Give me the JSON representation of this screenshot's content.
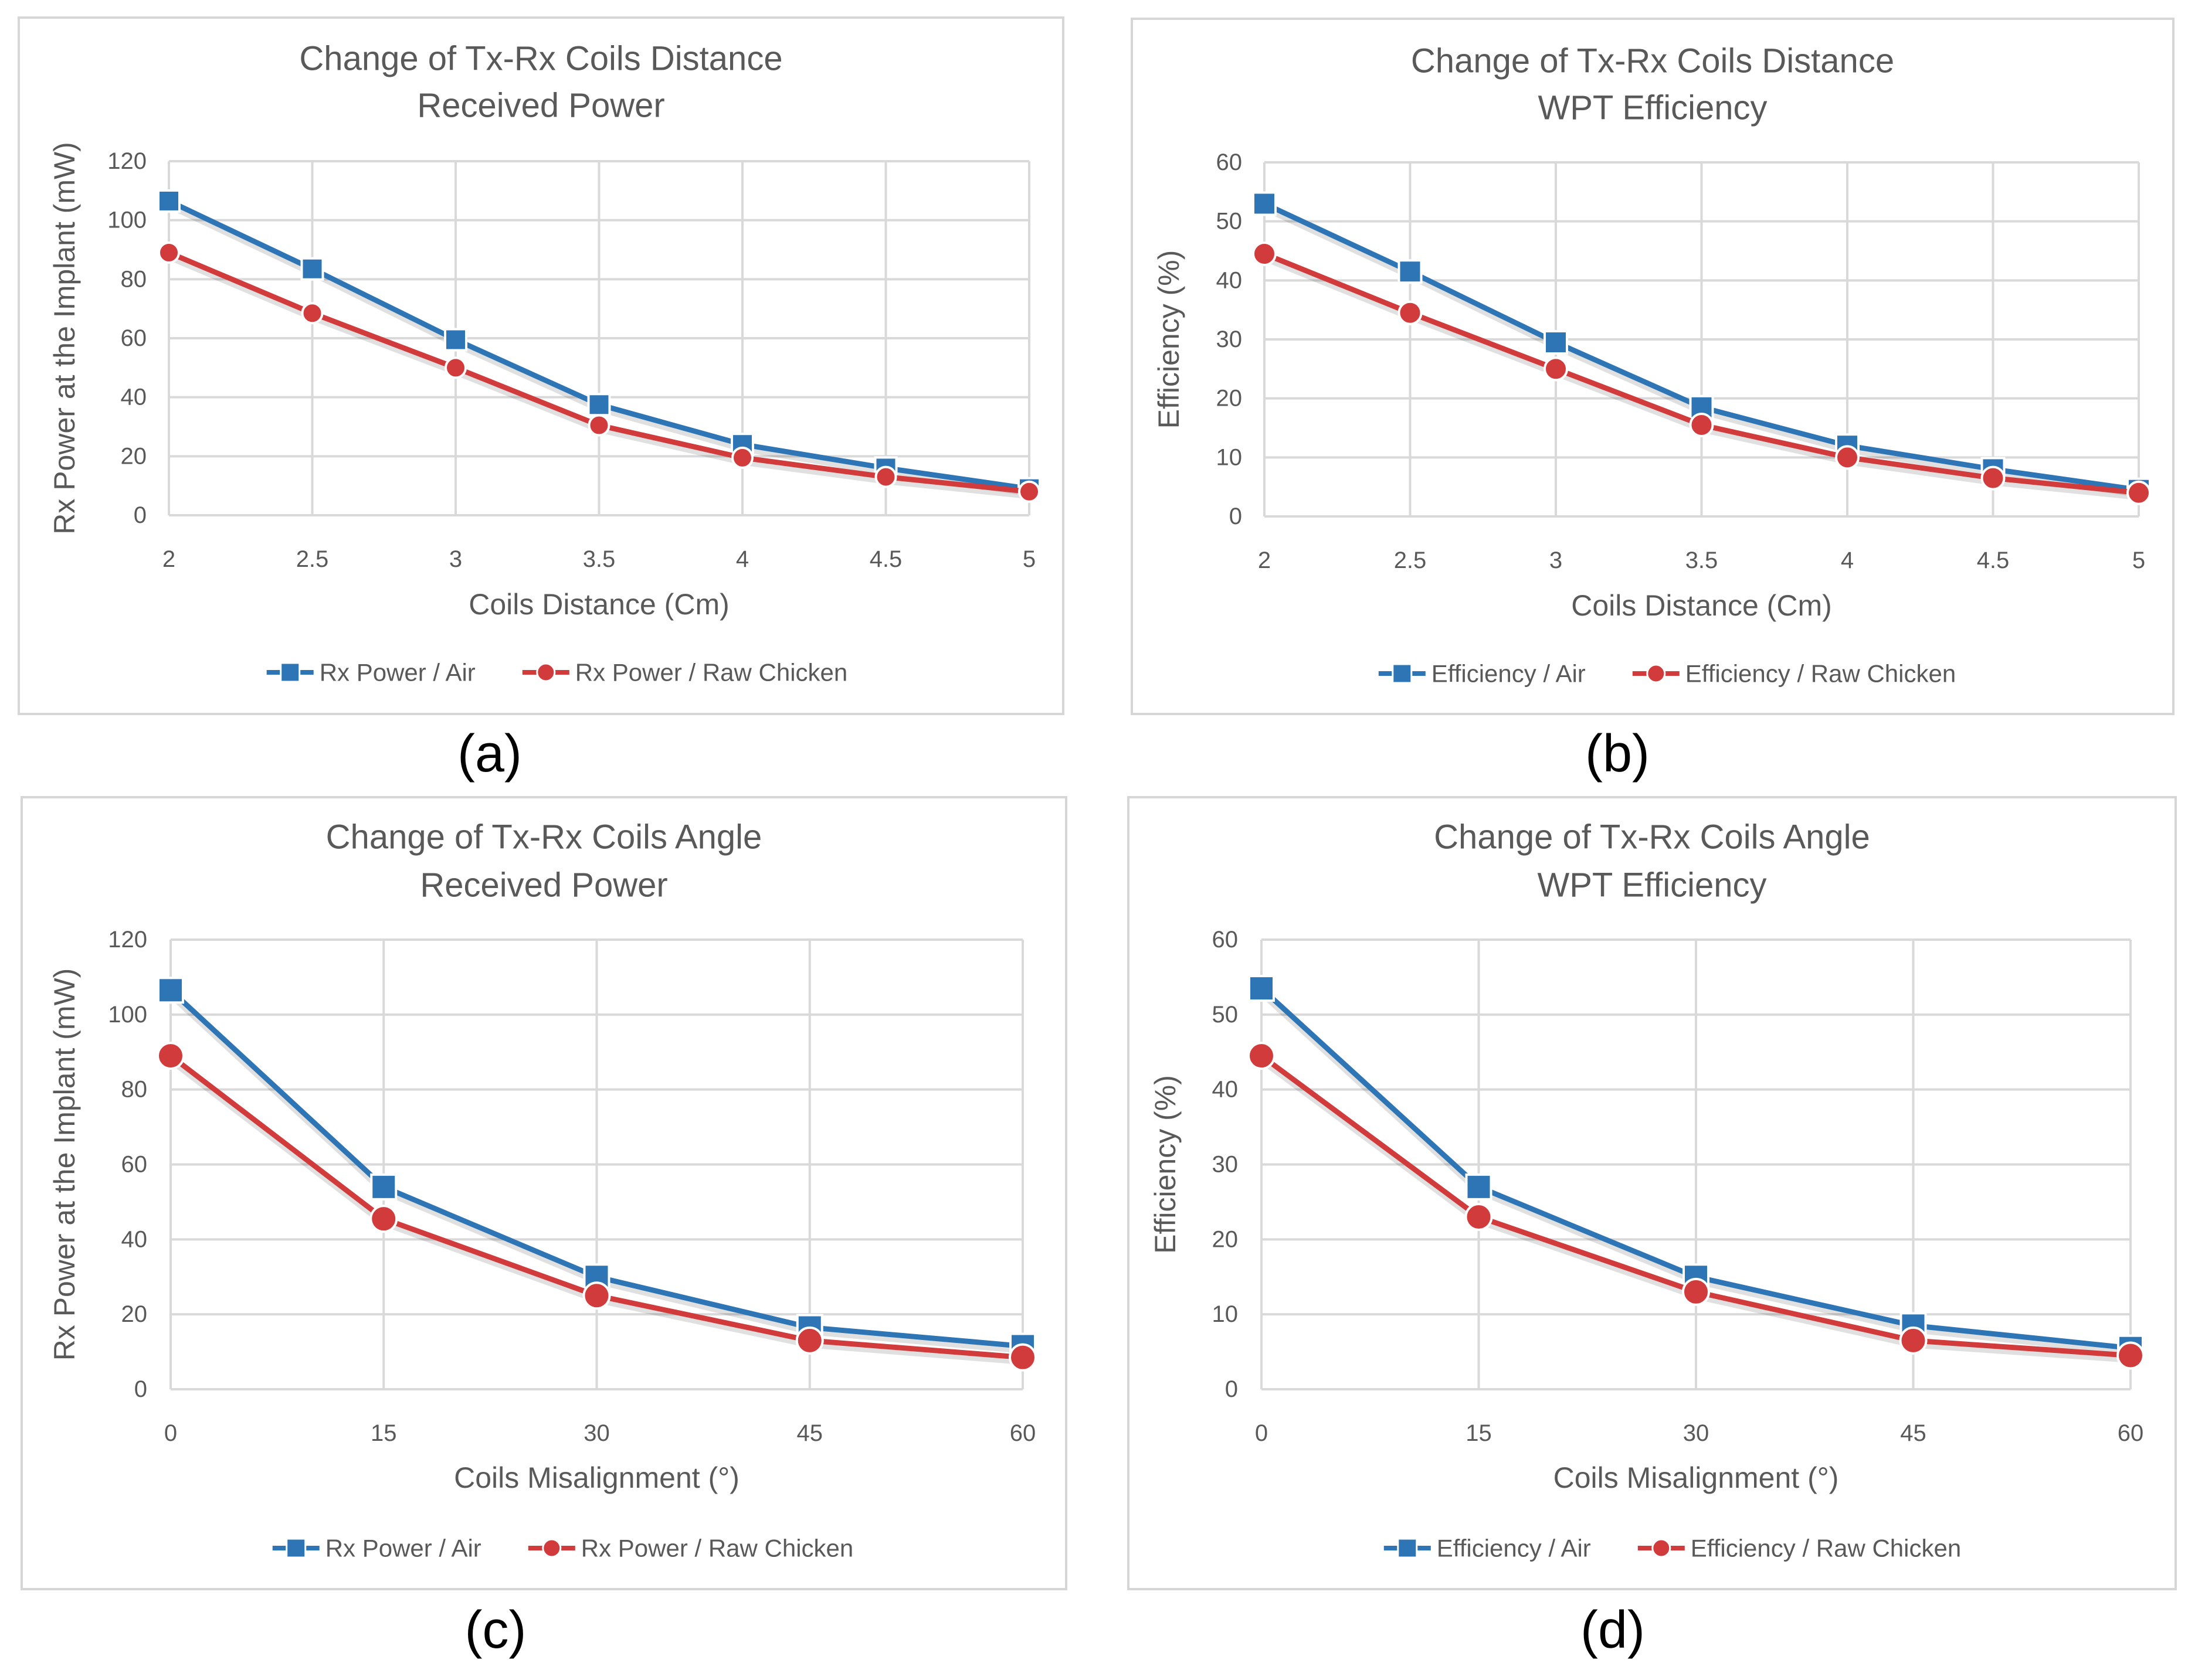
{
  "colors": {
    "air": "#2e75b6",
    "chicken": "#d13b3b"
  },
  "panels": [
    {
      "id": "a",
      "caption": "(a)",
      "chart_data": {
        "type": "line",
        "title": [
          "Change of Tx-Rx Coils Distance",
          "Received Power"
        ],
        "xlabel": "Coils Distance (Cm)",
        "ylabel": "Rx Power at the Implant (mW)",
        "categories": [
          "2",
          "2.5",
          "3",
          "3.5",
          "4",
          "4.5",
          "5"
        ],
        "y_ticks": [
          "0",
          "20",
          "40",
          "60",
          "80",
          "100",
          "120"
        ],
        "ylim": [
          0,
          120
        ],
        "series": [
          {
            "name": "Rx Power / Air",
            "marker": "square",
            "values": [
              106.5,
              83.5,
              59.5,
              37.5,
              24,
              16,
              9
            ]
          },
          {
            "name": "Rx Power / Raw Chicken",
            "marker": "circle",
            "values": [
              89,
              68.5,
              50,
              30.5,
              19.5,
              13,
              8
            ]
          }
        ],
        "legend": "bottom"
      }
    },
    {
      "id": "b",
      "caption": "(b)",
      "chart_data": {
        "type": "line",
        "title": [
          "Change of Tx-Rx Coils Distance",
          "WPT Efficiency"
        ],
        "xlabel": "Coils Distance (Cm)",
        "ylabel": "Efficiency (%)",
        "categories": [
          "2",
          "2.5",
          "3",
          "3.5",
          "4",
          "4.5",
          "5"
        ],
        "y_ticks": [
          "0",
          "10",
          "20",
          "30",
          "40",
          "50",
          "60"
        ],
        "ylim": [
          0,
          60
        ],
        "series": [
          {
            "name": "Efficiency / Air",
            "marker": "square",
            "values": [
              53,
              41.5,
              29.5,
              18.5,
              12,
              8,
              4.5
            ]
          },
          {
            "name": "Efficiency / Raw Chicken",
            "marker": "circle",
            "values": [
              44.5,
              34.5,
              25,
              15.5,
              10,
              6.5,
              4
            ]
          }
        ],
        "legend": "bottom"
      }
    },
    {
      "id": "c",
      "caption": "(c)",
      "chart_data": {
        "type": "line",
        "title": [
          "Change of Tx-Rx Coils Angle",
          "Received Power"
        ],
        "xlabel": "Coils Misalignment (°)",
        "ylabel": "Rx Power at the Implant (mW)",
        "categories": [
          "0",
          "15",
          "30",
          "45",
          "60"
        ],
        "y_ticks": [
          "0",
          "20",
          "40",
          "60",
          "80",
          "100",
          "120"
        ],
        "ylim": [
          0,
          120
        ],
        "series": [
          {
            "name": "Rx Power / Air",
            "marker": "square",
            "values": [
              106.5,
              54,
              30,
              16.5,
              11.5
            ]
          },
          {
            "name": "Rx Power / Raw Chicken",
            "marker": "circle",
            "values": [
              89,
              45.5,
              25,
              13,
              8.5
            ]
          }
        ],
        "legend": "bottom"
      }
    },
    {
      "id": "d",
      "caption": "(d)",
      "chart_data": {
        "type": "line",
        "title": [
          "Change of Tx-Rx Coils Angle",
          "WPT Efficiency"
        ],
        "xlabel": "Coils Misalignment (°)",
        "ylabel": "Efficiency (%)",
        "categories": [
          "0",
          "15",
          "30",
          "45",
          "60"
        ],
        "y_ticks": [
          "0",
          "10",
          "20",
          "30",
          "40",
          "50",
          "60"
        ],
        "ylim": [
          0,
          60
        ],
        "series": [
          {
            "name": "Efficiency / Air",
            "marker": "square",
            "values": [
              53.5,
              27,
              15,
              8.5,
              5.5
            ]
          },
          {
            "name": "Efficiency / Raw Chicken",
            "marker": "circle",
            "values": [
              44.5,
              23,
              13,
              6.5,
              4.5
            ]
          }
        ],
        "legend": "bottom"
      }
    }
  ]
}
